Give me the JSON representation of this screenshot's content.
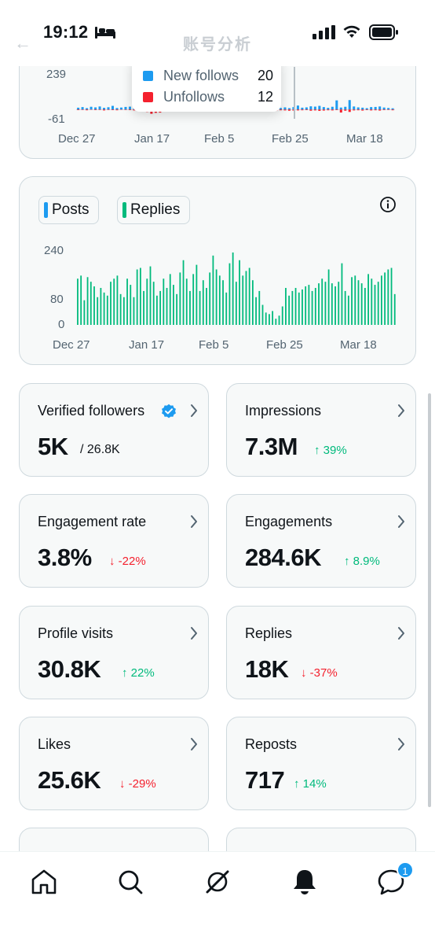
{
  "status_bar": {
    "time": "19:12"
  },
  "header": {
    "title": "账号分析"
  },
  "follows_chart": {
    "y_ticks": [
      "239",
      "-61"
    ],
    "x_ticks": [
      "Dec 27",
      "Jan 17",
      "Feb 5",
      "Feb 25",
      "Mar 18"
    ],
    "tooltip": {
      "new_label": "New follows",
      "new_value": "20",
      "unfollow_label": "Unfollows",
      "unfollow_value": "12"
    }
  },
  "posts_chart": {
    "legend": {
      "posts": "Posts",
      "replies": "Replies"
    },
    "y_ticks": [
      "240",
      "80",
      "0"
    ],
    "x_ticks": [
      "Dec 27",
      "Jan 17",
      "Feb 5",
      "Feb 25",
      "Mar 18"
    ]
  },
  "stats": [
    {
      "title": "Verified followers",
      "value": "5K",
      "sub": "/ 26.8K"
    },
    {
      "title": "Impressions",
      "value": "7.3M",
      "change": "↑ 39%"
    },
    {
      "title": "Engagement rate",
      "value": "3.8%",
      "change": "↓ -22%"
    },
    {
      "title": "Engagements",
      "value": "284.6K",
      "change": "↑ 8.9%"
    },
    {
      "title": "Profile visits",
      "value": "30.8K",
      "change": "↑ 22%"
    },
    {
      "title": "Replies",
      "value": "18K",
      "change": "↓ -37%"
    },
    {
      "title": "Likes",
      "value": "25.6K",
      "change": "↓ -29%"
    },
    {
      "title": "Reposts",
      "value": "717",
      "change": "↑ 14%"
    }
  ],
  "tab_bar": {
    "notification_badge": "1"
  },
  "colors": {
    "accent": "#1d9bf0",
    "positive": "#00ba7c",
    "negative": "#f4212e",
    "replies": "#00ba7c",
    "unfollows": "#f4212e"
  },
  "chart_data": [
    {
      "type": "bar",
      "series": [
        {
          "name": "New follows",
          "values": [
            12,
            16,
            9,
            18,
            14,
            20,
            11,
            15,
            24,
            10,
            13,
            17,
            19,
            8,
            12,
            6,
            20,
            14,
            9,
            10,
            7,
            12,
            8,
            11,
            16,
            9,
            13,
            10,
            12,
            14,
            8,
            9,
            11,
            15,
            13,
            10,
            17,
            12,
            9,
            14,
            11,
            22,
            16,
            13,
            18,
            20,
            12,
            10,
            14,
            9,
            16,
            26,
            12,
            14,
            21,
            19,
            24,
            16,
            11,
            18,
            60,
            13,
            18,
            62,
            20,
            14,
            12,
            9,
            16,
            17,
            20,
            13,
            10,
            8
          ]
        },
        {
          "name": "Unfollows",
          "values": [
            -4,
            -3,
            -5,
            -2,
            -4,
            -3,
            -6,
            -3,
            -4,
            -5,
            -2,
            -3,
            -4,
            -6,
            -5,
            -3,
            -16,
            -28,
            -22,
            -20,
            -12,
            -14,
            -10,
            -9,
            -12,
            -8,
            -6,
            -5,
            -8,
            -6,
            -4,
            -7,
            -9,
            -6,
            -5,
            -8,
            -4,
            -6,
            -7,
            -5,
            -8,
            -6,
            -4,
            -5,
            -7,
            -6,
            -9,
            -5,
            -6,
            -8,
            -7,
            -6,
            -5,
            -4,
            -8,
            -6,
            -9,
            -7,
            -5,
            -6,
            -4,
            -20,
            -8,
            -16,
            -6,
            -5,
            -7,
            -4,
            -6,
            -5,
            -7,
            -4,
            -3,
            -5
          ]
        }
      ],
      "ylim": [
        -61,
        239
      ],
      "x_ticks": [
        "Dec 27",
        "Jan 17",
        "Feb 5",
        "Feb 25",
        "Mar 18"
      ]
    },
    {
      "type": "bar",
      "series": [
        {
          "name": "Replies",
          "values": [
            150,
            160,
            80,
            155,
            140,
            125,
            90,
            120,
            105,
            95,
            140,
            150,
            160,
            100,
            90,
            150,
            130,
            90,
            180,
            185,
            110,
            150,
            190,
            140,
            95,
            110,
            150,
            120,
            165,
            130,
            100,
            170,
            210,
            150,
            110,
            165,
            195,
            110,
            145,
            120,
            170,
            225,
            180,
            160,
            145,
            105,
            200,
            235,
            140,
            210,
            160,
            175,
            185,
            145,
            90,
            110,
            65,
            40,
            35,
            45,
            20,
            30,
            60,
            120,
            95,
            110,
            120,
            105,
            115,
            125,
            130,
            110,
            120,
            135,
            150,
            140,
            180,
            135,
            125,
            140,
            200,
            110,
            95,
            155,
            160,
            145,
            135,
            120,
            165,
            150,
            130,
            140,
            160,
            170,
            180,
            185,
            100
          ]
        }
      ],
      "ylim": [
        0,
        240
      ],
      "x_ticks": [
        "Dec 27",
        "Jan 17",
        "Feb 5",
        "Feb 25",
        "Mar 18"
      ]
    }
  ]
}
